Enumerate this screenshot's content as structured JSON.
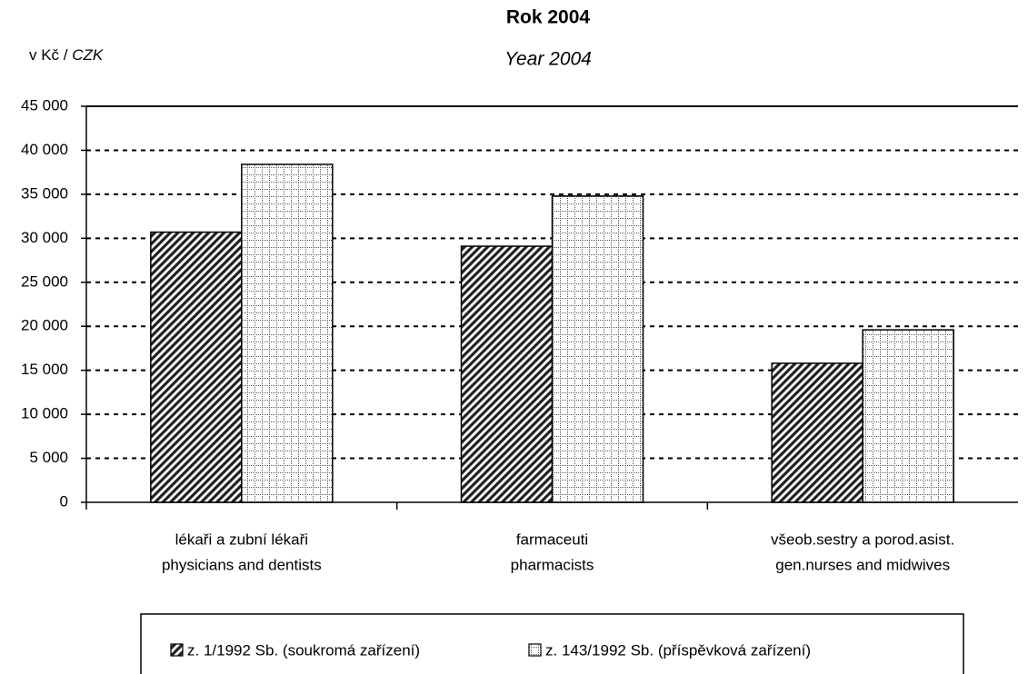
{
  "chart_data": {
    "type": "bar",
    "title": "Rok 2004",
    "subtitle": "Year 2004",
    "y_label": [
      "v Kč /",
      "CZK"
    ],
    "categories": [
      [
        "lékaři a zubní lékaři",
        "physicians and dentists"
      ],
      [
        "farmaceuti",
        "pharmacists"
      ],
      [
        "všeob.sestry a porod.asist.",
        "gen.nurses and midwives"
      ]
    ],
    "series": [
      {
        "name": "z. 1/1992 Sb. (soukromá zařízení)",
        "color": "#000000",
        "pattern": "diagonal",
        "values": [
          30700,
          29100,
          15800
        ]
      },
      {
        "name": "z. 143/1992 Sb. (příspěvková zařízení)",
        "color": "#000000",
        "pattern": "grid",
        "values": [
          38400,
          34800,
          19600
        ]
      }
    ],
    "ylim": [
      0,
      45000
    ],
    "yticks": [
      0,
      {
        "value": 5000,
        "label": "5 000"
      },
      {
        "value": 10000,
        "label": "10 000"
      },
      {
        "value": 15000,
        "label": "15 000"
      },
      {
        "value": 20000,
        "label": "20 000"
      },
      {
        "value": 25000,
        "label": "25 000"
      },
      {
        "value": 30000,
        "label": "30 000"
      },
      {
        "value": 35000,
        "label": "35 000"
      },
      {
        "value": 40000,
        "label": "40 000"
      },
      {
        "value": 45000,
        "label": "45 000"
      }
    ],
    "grid": true,
    "legend": "bottom"
  }
}
